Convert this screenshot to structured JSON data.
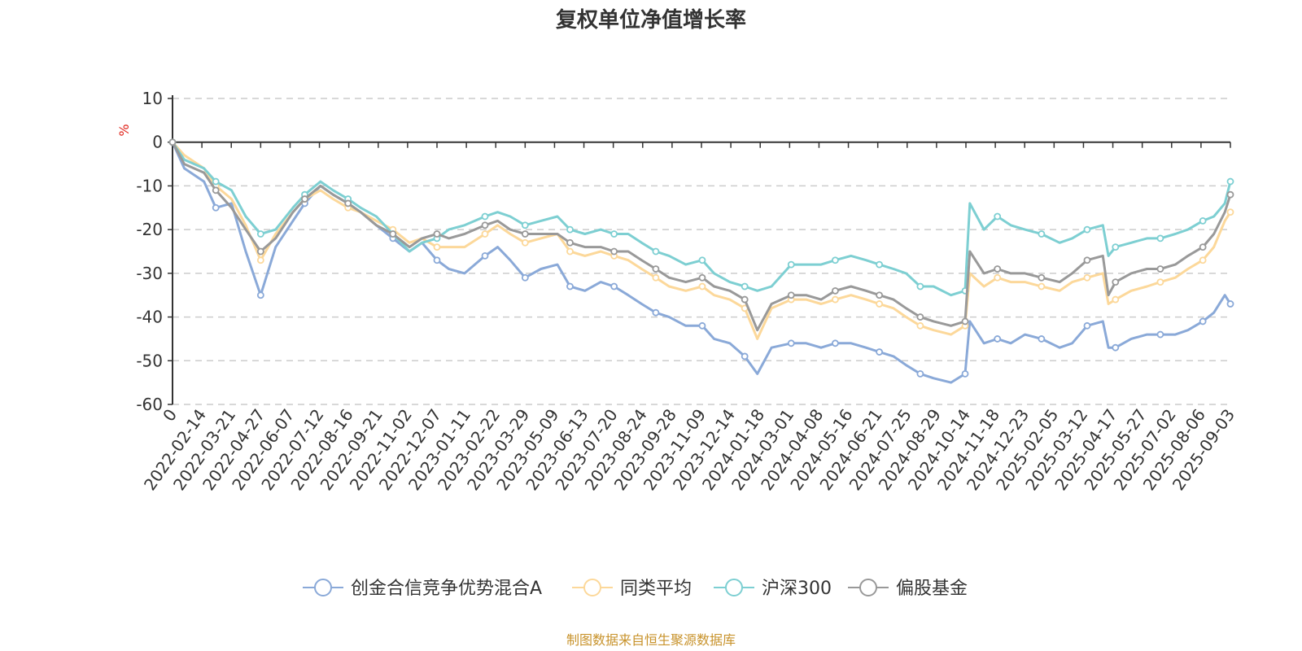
{
  "title": "复权单位净值增长率",
  "source": "制图数据来自恒生聚源数据库",
  "chart_data": {
    "type": "line",
    "title": "复权单位净值增长率",
    "ylabel": "%",
    "ylim": [
      -60,
      10
    ],
    "yticks": [
      10,
      0,
      -10,
      -20,
      -30,
      -40,
      -50,
      -60
    ],
    "x_first_label": "0",
    "x_tick_labels": [
      "2022-02-14",
      "2022-03-21",
      "2022-04-27",
      "2022-06-07",
      "2022-07-12",
      "2022-08-16",
      "2022-09-21",
      "2022-11-02",
      "2022-12-07",
      "2023-01-11",
      "2023-02-22",
      "2023-03-29",
      "2023-05-09",
      "2023-06-13",
      "2023-07-20",
      "2023-08-24",
      "2023-09-28",
      "2023-11-09",
      "2023-12-14",
      "2024-01-18",
      "2024-03-01",
      "2024-04-08",
      "2024-05-16",
      "2024-06-21",
      "2024-07-25",
      "2024-08-29",
      "2024-10-14",
      "2024-11-18",
      "2024-12-23",
      "2025-02-05",
      "2025-03-12",
      "2025-04-17",
      "2025-05-27",
      "2025-07-02",
      "2025-08-06",
      "2025-09-03"
    ],
    "x": [
      "2022-01-05",
      "2022-01-20",
      "2022-02-14",
      "2022-03-01",
      "2022-03-21",
      "2022-04-08",
      "2022-04-27",
      "2022-05-16",
      "2022-06-07",
      "2022-06-22",
      "2022-07-12",
      "2022-07-28",
      "2022-08-16",
      "2022-09-01",
      "2022-09-21",
      "2022-10-12",
      "2022-11-02",
      "2022-11-18",
      "2022-12-07",
      "2022-12-22",
      "2023-01-11",
      "2023-02-06",
      "2023-02-22",
      "2023-03-10",
      "2023-03-29",
      "2023-04-18",
      "2023-05-09",
      "2023-05-25",
      "2023-06-13",
      "2023-07-03",
      "2023-07-20",
      "2023-08-07",
      "2023-08-24",
      "2023-09-11",
      "2023-09-28",
      "2023-10-19",
      "2023-11-09",
      "2023-11-24",
      "2023-12-14",
      "2024-01-02",
      "2024-01-18",
      "2024-02-05",
      "2024-03-01",
      "2024-03-20",
      "2024-04-08",
      "2024-04-26",
      "2024-05-16",
      "2024-06-04",
      "2024-06-21",
      "2024-07-09",
      "2024-07-25",
      "2024-08-12",
      "2024-08-29",
      "2024-09-20",
      "2024-10-08",
      "2024-10-14",
      "2024-11-01",
      "2024-11-18",
      "2024-12-05",
      "2024-12-23",
      "2025-01-13",
      "2025-02-05",
      "2025-02-21",
      "2025-03-12",
      "2025-04-01",
      "2025-04-08",
      "2025-04-17",
      "2025-05-07",
      "2025-05-27",
      "2025-06-13",
      "2025-07-02",
      "2025-07-18",
      "2025-08-06",
      "2025-08-20",
      "2025-09-03",
      "2025-09-10"
    ],
    "series": [
      {
        "name": "创金合信竞争优势混合A",
        "color": "#8aa9d8",
        "values": [
          0,
          -6,
          -9,
          -15,
          -14,
          -25,
          -35,
          -24,
          -18,
          -14,
          -10,
          -12,
          -14,
          -16,
          -19,
          -22,
          -25,
          -23,
          -27,
          -29,
          -30,
          -26,
          -24,
          -27,
          -31,
          -29,
          -28,
          -33,
          -34,
          -32,
          -33,
          -35,
          -37,
          -39,
          -40,
          -42,
          -42,
          -45,
          -46,
          -49,
          -53,
          -47,
          -46,
          -46,
          -47,
          -46,
          -46,
          -47,
          -48,
          -49,
          -51,
          -53,
          -54,
          -55,
          -53,
          -41,
          -46,
          -45,
          -46,
          -44,
          -45,
          -47,
          -46,
          -42,
          -41,
          -47,
          -47,
          -45,
          -44,
          -44,
          -44,
          -43,
          -41,
          -39,
          -35,
          -37
        ]
      },
      {
        "name": "同类平均",
        "color": "#fcd89a",
        "values": [
          0,
          -3,
          -6,
          -10,
          -13,
          -19,
          -27,
          -21,
          -16,
          -13,
          -11,
          -13,
          -15,
          -16,
          -18,
          -20,
          -23,
          -22,
          -24,
          -24,
          -24,
          -21,
          -19,
          -21,
          -23,
          -22,
          -21,
          -25,
          -26,
          -25,
          -26,
          -27,
          -29,
          -31,
          -33,
          -34,
          -33,
          -35,
          -36,
          -38,
          -45,
          -38,
          -36,
          -36,
          -37,
          -36,
          -35,
          -36,
          -37,
          -38,
          -40,
          -42,
          -43,
          -44,
          -42,
          -30,
          -33,
          -31,
          -32,
          -32,
          -33,
          -34,
          -32,
          -31,
          -30,
          -37,
          -36,
          -34,
          -33,
          -32,
          -31,
          -29,
          -27,
          -24,
          -18,
          -16
        ]
      },
      {
        "name": "沪深300",
        "color": "#7dcfd2",
        "values": [
          0,
          -4,
          -6,
          -9,
          -11,
          -17,
          -21,
          -20,
          -15,
          -12,
          -9,
          -11,
          -13,
          -15,
          -17,
          -21,
          -25,
          -23,
          -22,
          -20,
          -19,
          -17,
          -16,
          -17,
          -19,
          -18,
          -17,
          -20,
          -21,
          -20,
          -21,
          -21,
          -23,
          -25,
          -26,
          -28,
          -27,
          -30,
          -32,
          -33,
          -34,
          -33,
          -28,
          -28,
          -28,
          -27,
          -26,
          -27,
          -28,
          -29,
          -30,
          -33,
          -33,
          -35,
          -34,
          -14,
          -20,
          -17,
          -19,
          -20,
          -21,
          -23,
          -22,
          -20,
          -19,
          -26,
          -24,
          -23,
          -22,
          -22,
          -21,
          -20,
          -18,
          -17,
          -14,
          -9
        ]
      },
      {
        "name": "偏股基金",
        "color": "#999999",
        "values": [
          0,
          -5,
          -7,
          -11,
          -15,
          -20,
          -25,
          -22,
          -16,
          -13,
          -10,
          -12,
          -14,
          -16,
          -19,
          -21,
          -24,
          -22,
          -21,
          -22,
          -21,
          -19,
          -18,
          -20,
          -21,
          -21,
          -21,
          -23,
          -24,
          -24,
          -25,
          -25,
          -27,
          -29,
          -31,
          -32,
          -31,
          -33,
          -34,
          -36,
          -43,
          -37,
          -35,
          -35,
          -36,
          -34,
          -33,
          -34,
          -35,
          -36,
          -38,
          -40,
          -41,
          -42,
          -41,
          -25,
          -30,
          -29,
          -30,
          -30,
          -31,
          -32,
          -30,
          -27,
          -26,
          -35,
          -32,
          -30,
          -29,
          -29,
          -28,
          -26,
          -24,
          -21,
          -16,
          -12
        ]
      }
    ],
    "grid": true,
    "legend_position": "bottom"
  }
}
